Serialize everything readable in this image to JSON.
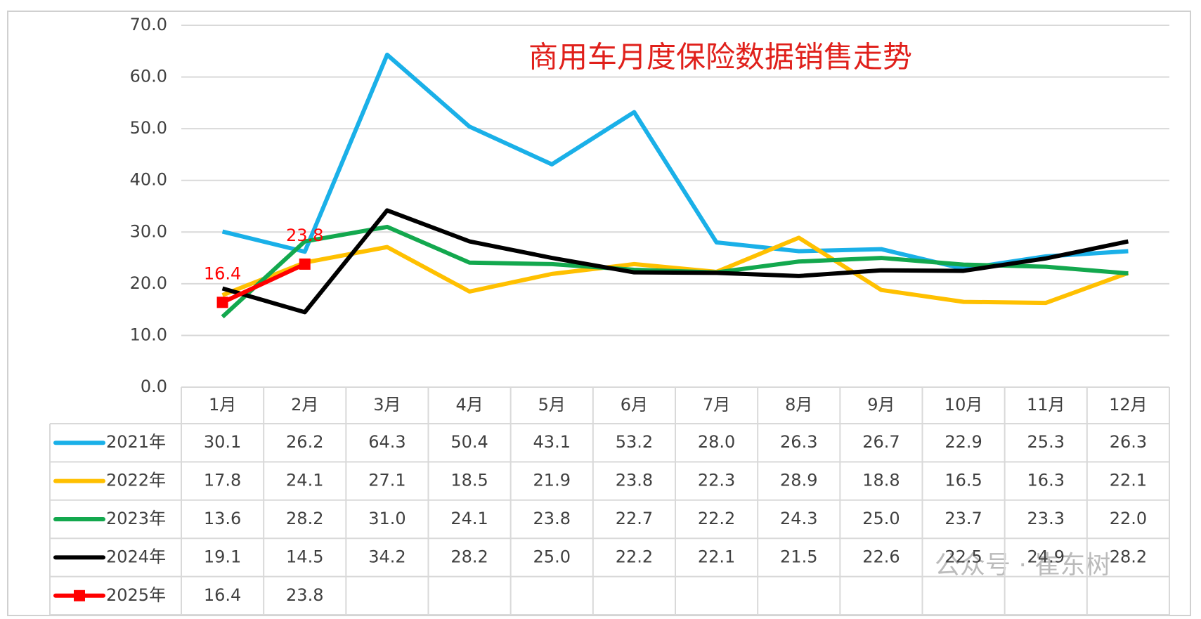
{
  "chart_data": {
    "type": "line",
    "title": "商用车月度保险数据销售走势",
    "categories": [
      "1月",
      "2月",
      "3月",
      "4月",
      "5月",
      "6月",
      "7月",
      "8月",
      "9月",
      "10月",
      "11月",
      "12月"
    ],
    "series": [
      {
        "name": "2021年",
        "color": "#1ab0e8",
        "values": [
          30.1,
          26.2,
          64.3,
          50.4,
          43.1,
          53.2,
          28.0,
          26.3,
          26.7,
          22.9,
          25.3,
          26.3
        ],
        "value_labels": [
          "30.1",
          "26.2",
          "64.3",
          "50.4",
          "43.1",
          "53.2",
          "28.0",
          "26.3",
          "26.7",
          "22.9",
          "25.3",
          "26.3"
        ]
      },
      {
        "name": "2022年",
        "color": "#ffc000",
        "values": [
          17.8,
          24.1,
          27.1,
          18.5,
          21.9,
          23.8,
          22.3,
          28.9,
          18.8,
          16.5,
          16.3,
          22.1
        ],
        "value_labels": [
          "17.8",
          "24.1",
          "27.1",
          "18.5",
          "21.9",
          "23.8",
          "22.3",
          "28.9",
          "18.8",
          "16.5",
          "16.3",
          "22.1"
        ]
      },
      {
        "name": "2023年",
        "color": "#13a84e",
        "values": [
          13.6,
          28.2,
          31.0,
          24.1,
          23.8,
          22.7,
          22.2,
          24.3,
          25.0,
          23.7,
          23.3,
          22.0
        ],
        "value_labels": [
          "13.6",
          "28.2",
          "31.0",
          "24.1",
          "23.8",
          "22.7",
          "22.2",
          "24.3",
          "25.0",
          "23.7",
          "23.3",
          "22.0"
        ]
      },
      {
        "name": "2024年",
        "color": "#000000",
        "values": [
          19.1,
          14.5,
          34.2,
          28.2,
          25.0,
          22.2,
          22.1,
          21.5,
          22.6,
          22.5,
          24.9,
          28.2
        ],
        "value_labels": [
          "19.1",
          "14.5",
          "34.2",
          "28.2",
          "25.0",
          "22.2",
          "22.1",
          "21.5",
          "22.6",
          "22.5",
          "24.9",
          "28.2"
        ]
      },
      {
        "name": "2025年",
        "color": "#ff0000",
        "marker": "square",
        "data_labels": true,
        "values": [
          16.4,
          23.8,
          null,
          null,
          null,
          null,
          null,
          null,
          null,
          null,
          null,
          null
        ],
        "value_labels": [
          "16.4",
          "23.8",
          null,
          null,
          null,
          null,
          null,
          null,
          null,
          null,
          null,
          null
        ]
      }
    ],
    "ylim": [
      0,
      70
    ],
    "yticks": [
      {
        "value": 0,
        "label": "0.0"
      },
      {
        "value": 10,
        "label": "10.0"
      },
      {
        "value": 20,
        "label": "20.0"
      },
      {
        "value": 30,
        "label": "30.0"
      },
      {
        "value": 40,
        "label": "40.0"
      },
      {
        "value": 50,
        "label": "50.0"
      },
      {
        "value": 60,
        "label": "60.0"
      },
      {
        "value": 70,
        "label": "70.0"
      }
    ],
    "grid": true,
    "watermark": "公众号 · 崔东树"
  }
}
